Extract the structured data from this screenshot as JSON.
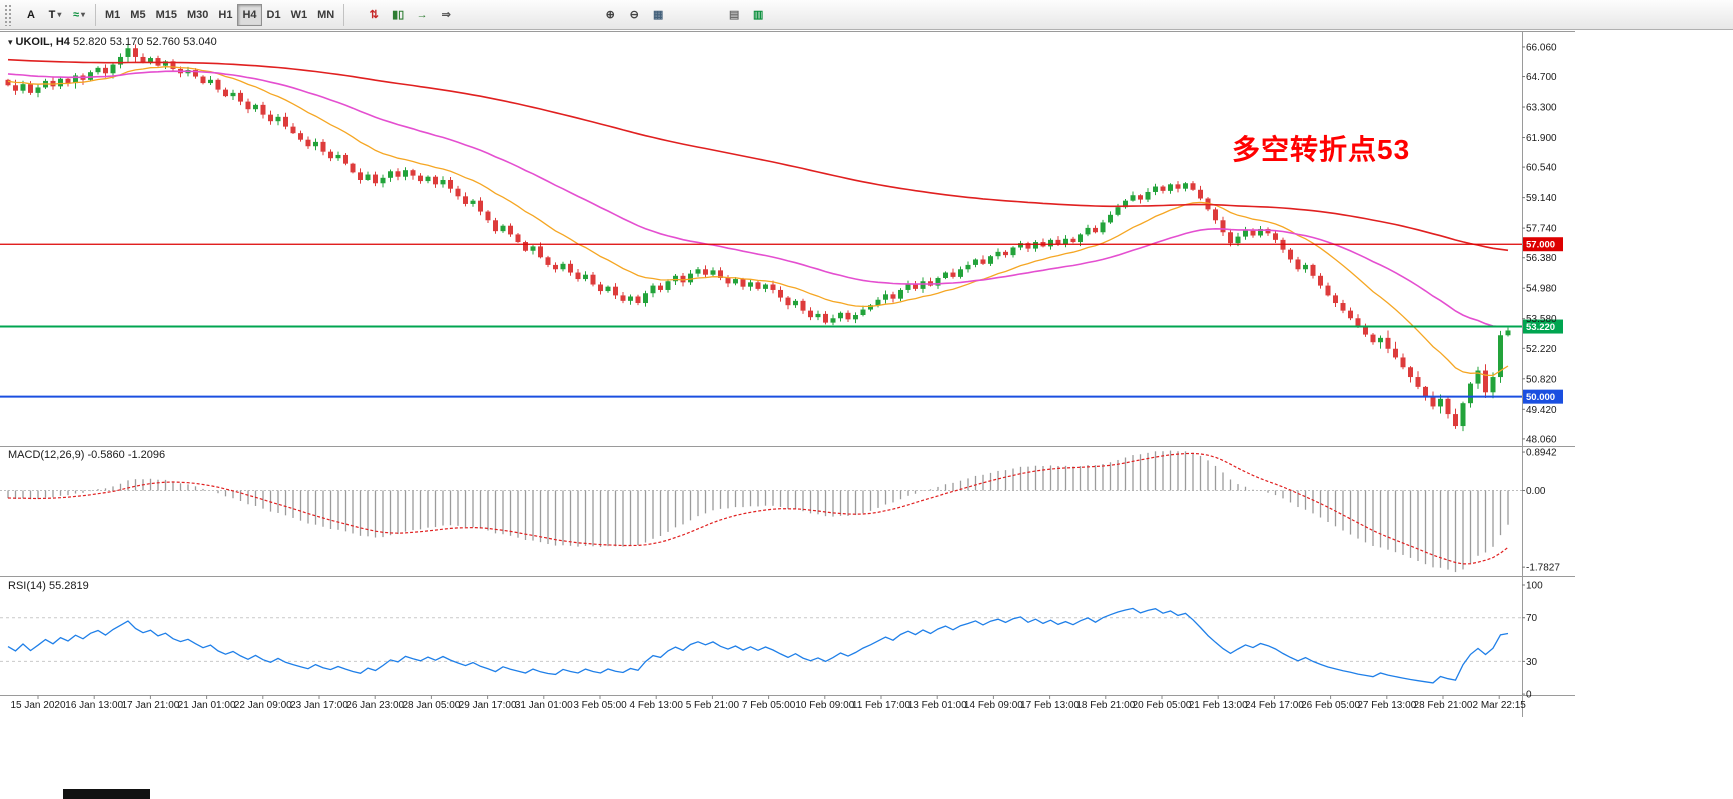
{
  "toolbar": {
    "tools": [
      {
        "name": "text-label-tool",
        "glyph": "A",
        "color": "#1a1a1a",
        "dropdown": false
      },
      {
        "name": "drawing-tools",
        "glyph": "T",
        "color": "#1a1a1a",
        "dropdown": true
      },
      {
        "name": "indicators-list",
        "glyph": "≈",
        "color": "#0a8f3c",
        "dropdown": true
      }
    ],
    "timeframes": [
      {
        "label": "M1",
        "active": false
      },
      {
        "label": "M5",
        "active": false
      },
      {
        "label": "M15",
        "active": false
      },
      {
        "label": "M30",
        "active": false
      },
      {
        "label": "H1",
        "active": false
      },
      {
        "label": "H4",
        "active": true
      },
      {
        "label": "D1",
        "active": false
      },
      {
        "label": "W1",
        "active": false
      },
      {
        "label": "MN",
        "active": false
      }
    ],
    "action_groups": [
      {
        "gap": 14,
        "buttons": [
          {
            "name": "new-order-button",
            "glyph": "⇅",
            "color": "#c62828"
          },
          {
            "name": "candlestick-chart-button",
            "glyph": "▮▯",
            "color": "#2e7d32"
          },
          {
            "name": "auto-scroll-button",
            "glyph": "→",
            "color": "#2e7d32"
          },
          {
            "name": "chart-shift-button",
            "glyph": "⇒",
            "color": "#555555"
          }
        ]
      },
      {
        "gap": 140,
        "buttons": [
          {
            "name": "zoom-in-button",
            "glyph": "⊕",
            "color": "#444444"
          },
          {
            "name": "zoom-out-button",
            "glyph": "⊖",
            "color": "#444444"
          },
          {
            "name": "tile-windows-button",
            "glyph": "▦",
            "color": "#44617b"
          }
        ]
      },
      {
        "gap": 52,
        "buttons": [
          {
            "name": "objects-list-button",
            "glyph": "▤",
            "color": "#6d6d6d"
          },
          {
            "name": "data-window-button",
            "glyph": "▥",
            "color": "#0a8f3c"
          }
        ]
      }
    ]
  },
  "chart": {
    "dropdown_glyph": "▾",
    "symbol_title": "UKOIL, H4",
    "ohlc": "52.820 53.170 52.760 53.040",
    "annotation": {
      "text": "多空转折点53",
      "color": "#ff0000"
    },
    "price_axis_labels": [
      "66.060",
      "64.700",
      "63.300",
      "61.900",
      "60.540",
      "59.140",
      "57.740",
      "56.380",
      "54.980",
      "53.580",
      "52.220",
      "50.820",
      "49.420",
      "48.060"
    ]
  },
  "macd_panel": {
    "label": "MACD(12,26,9) -0.5860 -1.2096",
    "axis_labels": [
      "0.8942",
      "0.00",
      "-1.7827"
    ]
  },
  "rsi_panel": {
    "label": "RSI(14) 55.2819",
    "axis_labels": [
      "100",
      "70",
      "30",
      "0"
    ]
  },
  "time_axis": [
    "15 Jan 2020",
    "16 Jan 13:00",
    "17 Jan 21:00",
    "21 Jan 01:00",
    "22 Jan 09:00",
    "23 Jan 17:00",
    "26 Jan 23:00",
    "28 Jan 05:00",
    "29 Jan 17:00",
    "31 Jan 01:00",
    "3 Feb 05:00",
    "4 Feb 13:00",
    "5 Feb 21:00",
    "7 Feb 05:00",
    "10 Feb 09:00",
    "11 Feb 17:00",
    "13 Feb 01:00",
    "14 Feb 09:00",
    "17 Feb 13:00",
    "18 Feb 21:00",
    "20 Feb 05:00",
    "21 Feb 13:00",
    "24 Feb 17:00",
    "26 Feb 05:00",
    "27 Feb 13:00",
    "28 Feb 21:00",
    "2 Mar 22:15"
  ],
  "chart_data": {
    "type": "candlestick",
    "symbol": "UKOIL",
    "timeframe": "H4",
    "title": "UKOIL, H4",
    "ylim": [
      47.78,
      66.7
    ],
    "up_color": "#23a33b",
    "down_color": "#dd3b3b",
    "closes": [
      64.3,
      64.05,
      64.35,
      63.95,
      64.2,
      64.5,
      64.25,
      64.6,
      64.4,
      64.75,
      64.55,
      64.9,
      65.1,
      64.85,
      65.25,
      65.6,
      66.0,
      65.6,
      65.35,
      65.55,
      65.2,
      65.4,
      65.05,
      64.85,
      65.0,
      64.7,
      64.4,
      64.55,
      64.1,
      63.8,
      63.95,
      63.55,
      63.2,
      63.4,
      62.95,
      62.65,
      62.85,
      62.4,
      62.1,
      61.8,
      61.5,
      61.7,
      61.25,
      60.95,
      61.1,
      60.7,
      60.3,
      59.95,
      60.2,
      59.8,
      60.05,
      60.35,
      60.1,
      60.4,
      60.15,
      59.9,
      60.1,
      59.75,
      59.95,
      59.55,
      59.2,
      58.85,
      59.0,
      58.5,
      58.1,
      57.6,
      57.85,
      57.45,
      57.1,
      56.7,
      56.9,
      56.4,
      56.05,
      55.85,
      56.1,
      55.7,
      55.4,
      55.6,
      55.15,
      54.85,
      55.05,
      54.65,
      54.4,
      54.6,
      54.3,
      54.75,
      55.1,
      54.9,
      55.3,
      55.55,
      55.25,
      55.65,
      55.85,
      55.6,
      55.8,
      55.45,
      55.2,
      55.4,
      55.05,
      55.25,
      54.95,
      55.15,
      54.9,
      54.55,
      54.2,
      54.4,
      53.95,
      53.65,
      53.8,
      53.4,
      53.6,
      53.85,
      53.55,
      53.75,
      54.0,
      54.2,
      54.45,
      54.7,
      54.5,
      54.9,
      55.15,
      54.95,
      55.3,
      55.1,
      55.45,
      55.7,
      55.5,
      55.85,
      56.05,
      56.3,
      56.1,
      56.45,
      56.65,
      56.5,
      56.85,
      57.05,
      56.8,
      57.1,
      56.9,
      57.2,
      57.0,
      57.25,
      57.1,
      57.45,
      57.75,
      57.55,
      58.0,
      58.35,
      58.7,
      59.0,
      59.25,
      59.05,
      59.4,
      59.65,
      59.45,
      59.75,
      59.55,
      59.8,
      59.5,
      59.1,
      58.6,
      58.1,
      57.55,
      57.05,
      57.35,
      57.65,
      57.4,
      57.7,
      57.5,
      57.2,
      56.75,
      56.3,
      55.85,
      56.05,
      55.55,
      55.1,
      54.65,
      54.3,
      53.95,
      53.6,
      53.2,
      52.85,
      52.5,
      52.7,
      52.2,
      51.8,
      51.35,
      50.9,
      50.45,
      50.0,
      49.55,
      49.9,
      49.2,
      48.65,
      49.7,
      50.6,
      51.2,
      50.2,
      50.9,
      52.82,
      53.04
    ],
    "last_candle": {
      "open": 52.82,
      "high": 53.17,
      "low": 52.76,
      "close": 53.04
    },
    "horizontal_lines": [
      {
        "value": 57.0,
        "label": "57.000",
        "color": "#dd0000",
        "width": 1.2
      },
      {
        "value": 53.22,
        "label": "53.220",
        "color": "#00a550",
        "width": 2
      },
      {
        "value": 50.0,
        "label": "50.000",
        "color": "#1a4fe0",
        "width": 2
      }
    ],
    "moving_averages": [
      {
        "name": "ma-fast",
        "period": 16,
        "color": "#f5a623",
        "width": 1.3
      },
      {
        "name": "ma-medium",
        "period": 44,
        "color": "#e44fd0",
        "width": 1.6
      },
      {
        "name": "ma-slow",
        "period": 170,
        "color": "#e02020",
        "width": 1.6,
        "seed": 66.0
      }
    ],
    "indicators": [
      {
        "type": "macd",
        "fast": 12,
        "slow": 26,
        "signal": 9,
        "current_main": -0.586,
        "current_signal": -1.2096,
        "axis": [
          0.8942,
          0.0,
          -1.7827
        ]
      },
      {
        "type": "rsi",
        "period": 14,
        "current": 55.2819,
        "levels": [
          70,
          30
        ],
        "range": [
          0,
          100
        ]
      }
    ]
  }
}
